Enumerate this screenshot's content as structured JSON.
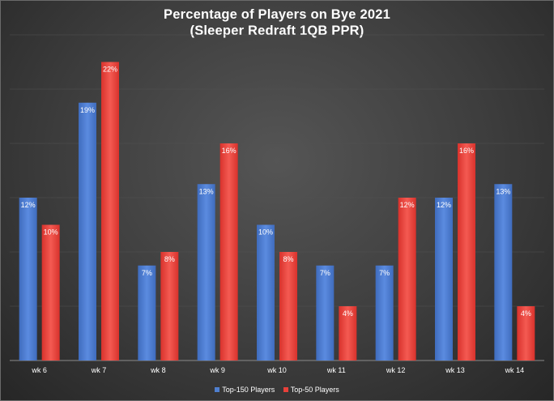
{
  "chart_data": {
    "type": "bar",
    "title_line1": "Percentage of Players on Bye 2021",
    "title_line2": "(Sleeper Redraft 1QB PPR)",
    "categories": [
      "wk 6",
      "wk 7",
      "wk 8",
      "wk 9",
      "wk 10",
      "wk 11",
      "wk 12",
      "wk 13",
      "wk 14"
    ],
    "series": [
      {
        "name": "Top-150 Players",
        "color": "#4f7fcf",
        "values": [
          12,
          19,
          7,
          13,
          10,
          7,
          7,
          12,
          13
        ],
        "labels": [
          "12%",
          "19%",
          "7%",
          "13%",
          "10%",
          "7%",
          "7%",
          "12%",
          "13%"
        ]
      },
      {
        "name": "Top-50 Players",
        "color": "#e8403a",
        "values": [
          10,
          22,
          8,
          16,
          8,
          4,
          12,
          16,
          4
        ],
        "labels": [
          "10%",
          "22%",
          "8%",
          "16%",
          "8%",
          "4%",
          "12%",
          "16%",
          "4%"
        ]
      }
    ],
    "ylim": [
      0,
      24
    ],
    "grid": true,
    "legend_position": "bottom"
  }
}
